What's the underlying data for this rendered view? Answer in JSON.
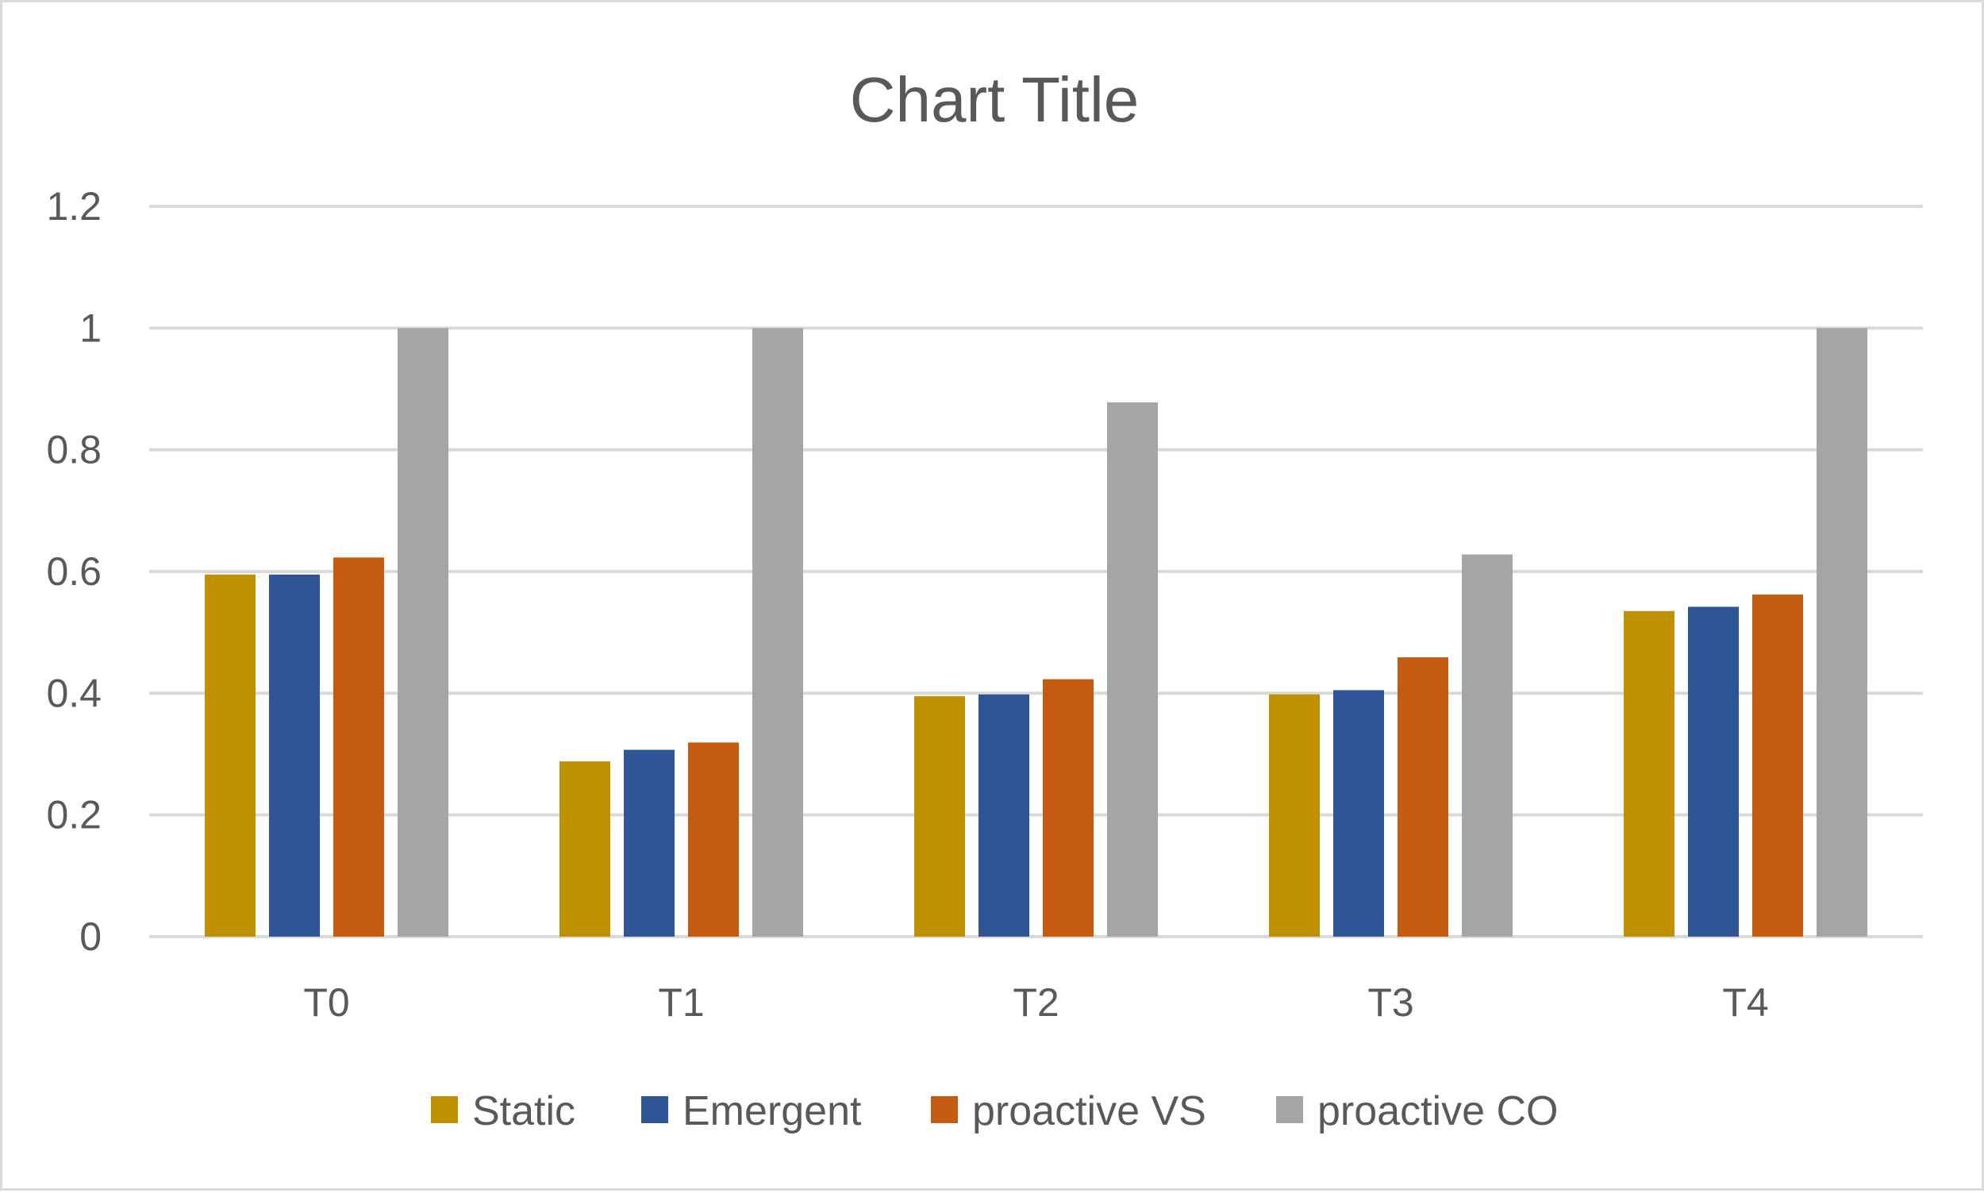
{
  "chart_data": {
    "type": "bar",
    "title": "Chart Title",
    "xlabel": "",
    "ylabel": "",
    "categories": [
      "T0",
      "T1",
      "T2",
      "T3",
      "T4"
    ],
    "ylim": [
      0,
      1.2
    ],
    "yticks": [
      "0",
      "0.2",
      "0.4",
      "0.6",
      "0.8",
      "1",
      "1.2"
    ],
    "ytick_values": [
      0,
      0.2,
      0.4,
      0.6,
      0.8,
      1.0,
      1.2
    ],
    "grid": true,
    "legend_position": "bottom",
    "series": [
      {
        "name": "Static",
        "color": "#bf9000",
        "values": [
          0.595,
          0.288,
          0.395,
          0.398,
          0.535
        ]
      },
      {
        "name": "Emergent",
        "color": "#2f5597",
        "values": [
          0.595,
          0.307,
          0.398,
          0.405,
          0.542
        ]
      },
      {
        "name": "proactive VS",
        "color": "#c55a11",
        "values": [
          0.623,
          0.319,
          0.423,
          0.459,
          0.562
        ]
      },
      {
        "name": "proactive CO",
        "color": "#a5a5a5",
        "values": [
          1.0,
          1.0,
          0.878,
          0.628,
          1.0
        ]
      }
    ]
  }
}
